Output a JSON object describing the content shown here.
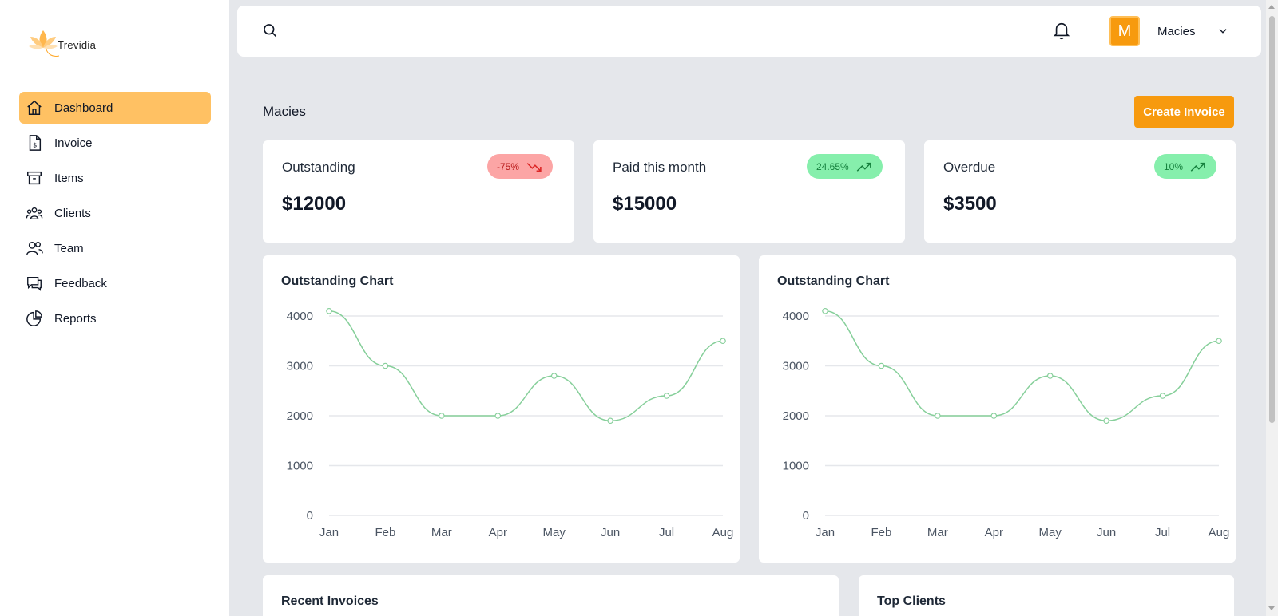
{
  "app": {
    "logo_text": "Trevidia",
    "accent": "#f79a0e",
    "active_bg": "#ffc163"
  },
  "sidebar": {
    "items": [
      {
        "label": "Dashboard",
        "icon": "home-icon",
        "active": true
      },
      {
        "label": "Invoice",
        "icon": "invoice-icon",
        "active": false
      },
      {
        "label": "Items",
        "icon": "archive-icon",
        "active": false
      },
      {
        "label": "Clients",
        "icon": "clients-icon",
        "active": false
      },
      {
        "label": "Team",
        "icon": "team-icon",
        "active": false
      },
      {
        "label": "Feedback",
        "icon": "feedback-icon",
        "active": false
      },
      {
        "label": "Reports",
        "icon": "pie-chart-icon",
        "active": false
      }
    ]
  },
  "header": {
    "avatar_initial": "M",
    "user_name": "Macies"
  },
  "main": {
    "title": "Macies",
    "create_label": "Create Invoice",
    "stats": [
      {
        "label": "Outstanding",
        "value": "$12000",
        "change": "-75%",
        "trend": "down"
      },
      {
        "label": "Paid this month",
        "value": "$15000",
        "change": "24.65%",
        "trend": "up"
      },
      {
        "label": "Overdue",
        "value": "$3500",
        "change": "10%",
        "trend": "up"
      }
    ],
    "charts_titles": [
      "Outstanding Chart",
      "Outstanding Chart"
    ],
    "recent_invoices_title": "Recent Invoices",
    "top_clients_title": "Top Clients"
  },
  "chart_data": [
    {
      "type": "line",
      "title": "Outstanding Chart",
      "categories": [
        "Jan",
        "Feb",
        "Mar",
        "Apr",
        "May",
        "Jun",
        "Jul",
        "Aug"
      ],
      "values": [
        4100,
        3000,
        2000,
        2000,
        2800,
        1900,
        2400,
        3500
      ],
      "yticks": [
        0,
        1000,
        2000,
        3000,
        4000
      ],
      "ylim": [
        0,
        4000
      ],
      "color": "#86cf9a",
      "grid": true
    },
    {
      "type": "line",
      "title": "Outstanding Chart",
      "categories": [
        "Jan",
        "Feb",
        "Mar",
        "Apr",
        "May",
        "Jun",
        "Jul",
        "Aug"
      ],
      "values": [
        4100,
        3000,
        2000,
        2000,
        2800,
        1900,
        2400,
        3500
      ],
      "yticks": [
        0,
        1000,
        2000,
        3000,
        4000
      ],
      "ylim": [
        0,
        4000
      ],
      "color": "#86cf9a",
      "grid": true
    }
  ]
}
